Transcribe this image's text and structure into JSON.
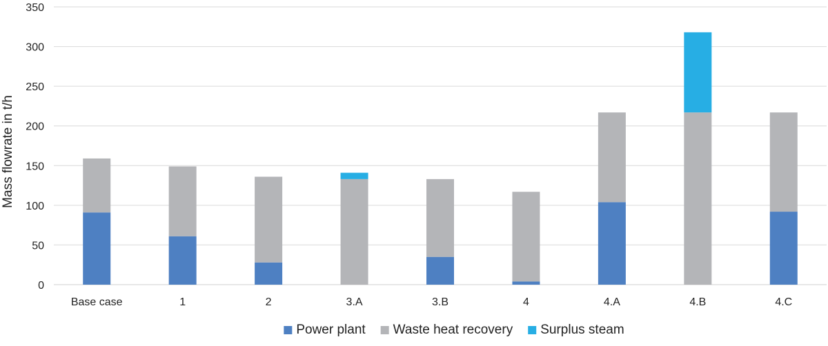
{
  "chart_data": {
    "type": "bar",
    "stacked": true,
    "ylabel": "Mass flowrate in t/h",
    "xlabel": "",
    "title": "",
    "ylim": [
      0,
      350
    ],
    "yticks": [
      0,
      50,
      100,
      150,
      200,
      250,
      300,
      350
    ],
    "grid": true,
    "legend_position": "bottom",
    "categories": [
      "Base case",
      "1",
      "2",
      "3.A",
      "3.B",
      "4",
      "4.A",
      "4.B",
      "4.C"
    ],
    "series": [
      {
        "name": "Power plant",
        "color": "#4e80c2",
        "values": [
          91,
          61,
          28,
          0,
          35,
          4,
          104,
          0,
          92
        ]
      },
      {
        "name": "Waste heat recovery",
        "color": "#b4b5b8",
        "values": [
          68,
          88,
          108,
          133,
          98,
          113,
          113,
          217,
          125
        ]
      },
      {
        "name": "Surplus steam",
        "color": "#27aee4",
        "values": [
          0,
          0,
          0,
          8,
          0,
          0,
          0,
          101,
          0
        ]
      }
    ]
  }
}
